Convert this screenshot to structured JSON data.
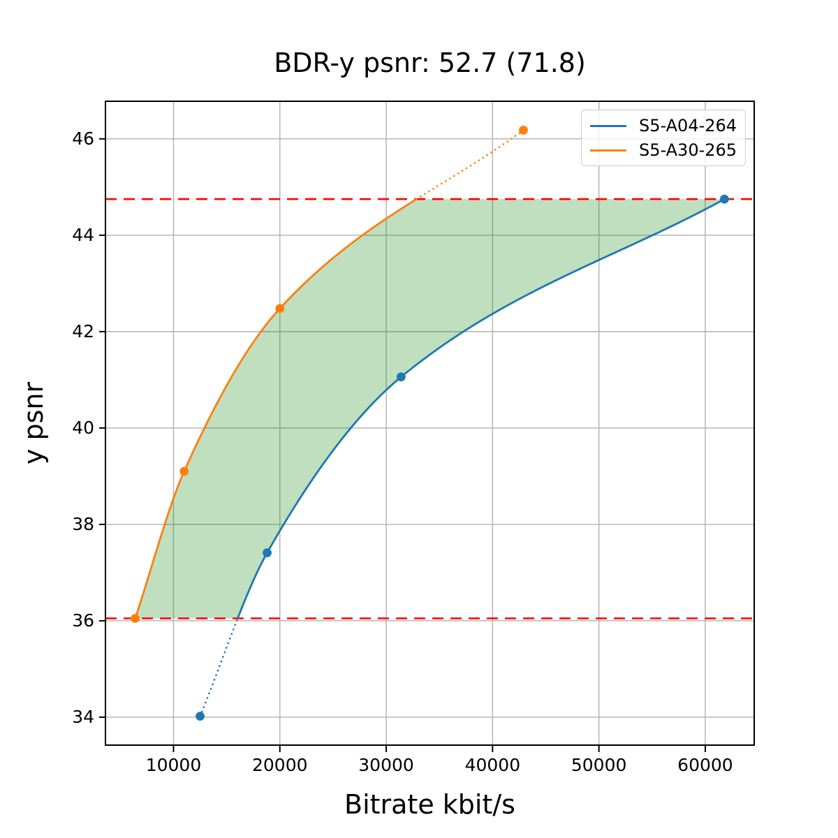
{
  "chart_data": {
    "type": "line",
    "title": "BDR-y psnr: 52.7 (71.8)",
    "xlabel": "Bitrate kbit/s",
    "ylabel": "y psnr",
    "bd_rate_values": {
      "value": "52.7",
      "value_in_parens": "71.8"
    },
    "xlim": [
      3600,
      64600
    ],
    "ylim": [
      33.42,
      46.78
    ],
    "xticks": [
      10000,
      20000,
      30000,
      40000,
      50000,
      60000
    ],
    "xtick_labels": [
      "10000",
      "20000",
      "30000",
      "40000",
      "50000",
      "60000"
    ],
    "yticks": [
      34,
      36,
      38,
      40,
      42,
      44,
      46
    ],
    "ytick_labels": [
      "34",
      "36",
      "38",
      "40",
      "42",
      "44",
      "46"
    ],
    "grid": true,
    "grid_color": "#b0b0b0",
    "legend_position": "upper right",
    "series": [
      {
        "name": "S5-A04-264",
        "color": "#1f77b4",
        "marker": "circle",
        "line_style": "solid-with-dotted-tail-below-lower-bound",
        "points": [
          [
            12500,
            34.02
          ],
          [
            18800,
            37.41
          ],
          [
            31400,
            41.06
          ],
          [
            61800,
            44.75
          ]
        ]
      },
      {
        "name": "S5-A30-265",
        "color": "#ff7f0e",
        "marker": "circle",
        "line_style": "solid-with-dotted-tail-above-upper-bound",
        "points": [
          [
            6400,
            36.05
          ],
          [
            11000,
            39.1
          ],
          [
            20000,
            42.48
          ],
          [
            42900,
            46.18
          ]
        ]
      }
    ],
    "hlines": [
      {
        "y": 44.75,
        "color": "#ff0000",
        "style": "dashed"
      },
      {
        "y": 36.05,
        "color": "#ff0000",
        "style": "dashed"
      }
    ],
    "shaded_region": {
      "description": "area between the two rate-distortion curves clipped between the two red dashed bounds",
      "color": "#008000",
      "alpha": 0.25
    }
  }
}
